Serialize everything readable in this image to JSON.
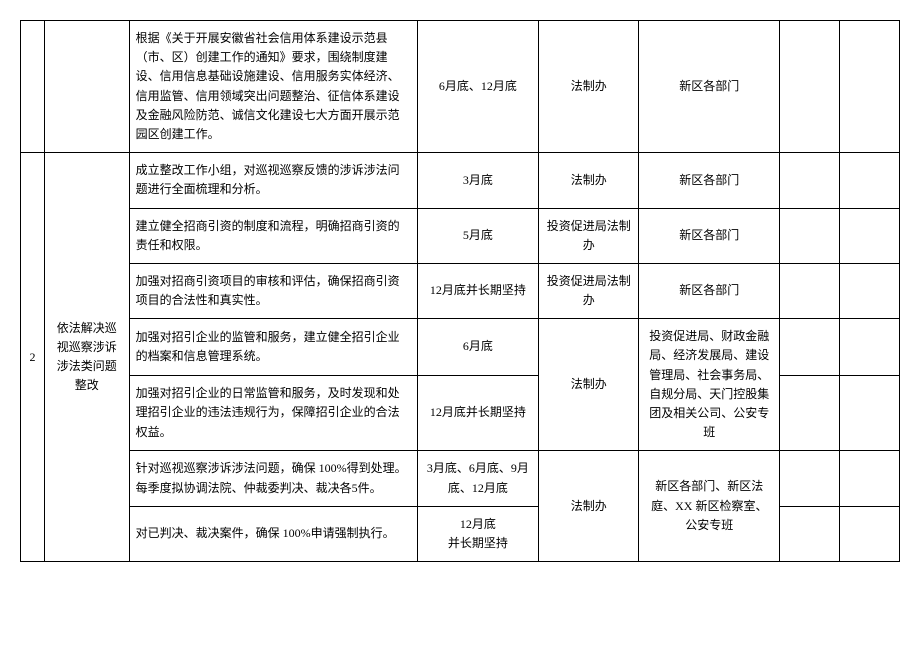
{
  "r1": {
    "desc": "根据《关于开展安徽省社会信用体系建设示范县（市、区）创建工作的通知》要求，围绕制度建设、信用信息基础设施建设、信用服务实体经济、信用监管、信用领域突出问题整治、征信体系建设及金融风险防范、诚信文化建设七大方面开展示范园区创建工作。",
    "deadline": "6月底、12月底",
    "lead": "法制办",
    "coop": "新区各部门"
  },
  "group2": {
    "num": "2",
    "title": "依法解决巡视巡察涉诉涉法类问题整改"
  },
  "r2": {
    "desc": "成立整改工作小组，对巡视巡察反馈的涉诉涉法问题进行全面梳理和分析。",
    "deadline": "3月底",
    "lead": "法制办",
    "coop": "新区各部门"
  },
  "r3": {
    "desc": "建立健全招商引资的制度和流程，明确招商引资的责任和权限。",
    "deadline": "5月底",
    "lead": "投资促进局法制办",
    "coop": "新区各部门"
  },
  "r4": {
    "desc": "加强对招商引资项目的审核和评估，确保招商引资项目的合法性和真实性。",
    "deadline": "12月底并长期坚持",
    "lead": "投资促进局法制办",
    "coop": "新区各部门"
  },
  "r5": {
    "desc": "加强对招引企业的监管和服务，建立健全招引企业的档案和信息管理系统。",
    "deadline": "6月底"
  },
  "r5_6": {
    "lead": "法制办",
    "coop": "投资促进局、财政金融局、经济发展局、建设管理局、社会事务局、自规分局、天门控股集团及相关公司、公安专班"
  },
  "r6": {
    "desc": "加强对招引企业的日常监管和服务，及时发现和处理招引企业的违法违规行为，保障招引企业的合法权益。",
    "deadline": "12月底并长期坚持"
  },
  "r7": {
    "desc": "针对巡视巡察涉诉涉法问题，确保 100%得到处理。每季度拟协调法院、仲裁委判决、裁决各5件。",
    "deadline": "3月底、6月底、9月底、12月底"
  },
  "r7_8": {
    "lead": "法制办",
    "coop": "新区各部门、新区法庭、XX 新区检察室、公安专班"
  },
  "r8": {
    "desc": "对已判决、裁决案件，确保 100%申请强制执行。",
    "deadline": "12月底\n并长期坚持"
  }
}
